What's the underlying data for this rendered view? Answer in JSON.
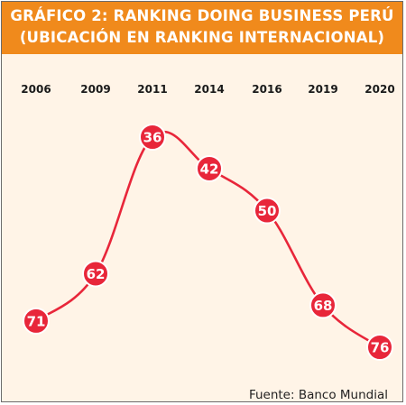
{
  "chart_data": {
    "type": "line",
    "title": "GRÁFICO 2: RANKING DOING BUSINESS PERÚ",
    "subtitle": "(UBICACIÓN EN RANKING INTERNACIONAL)",
    "categories": [
      "2006",
      "2009",
      "2011",
      "2014",
      "2016",
      "2019",
      "2020"
    ],
    "values": [
      71,
      62,
      36,
      42,
      50,
      68,
      76
    ],
    "y_inverted": true,
    "ylim": [
      30,
      80
    ],
    "grid": false,
    "legend": "none",
    "source": "Fuente: Banco Mundial"
  },
  "colors": {
    "header_bg": "#f08a1c",
    "panel_bg": "#fff4e7",
    "line": "#e8263a",
    "marker": "#e8263a",
    "marker_text": "#ffffff",
    "axis_text": "#1a1a1a"
  }
}
